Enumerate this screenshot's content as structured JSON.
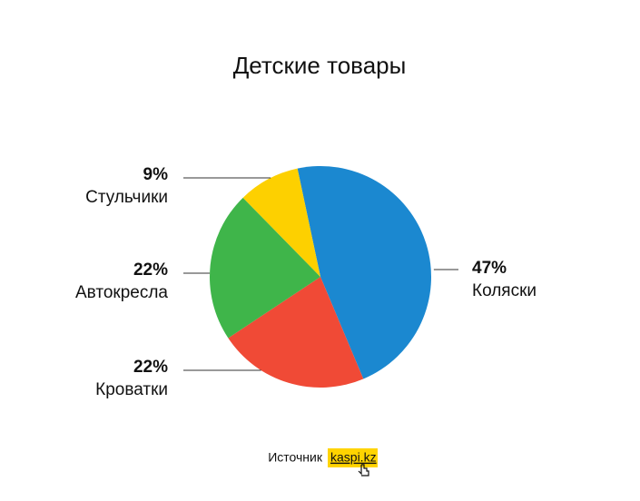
{
  "chart_data": {
    "type": "pie",
    "title": "Детские товары",
    "categories": [
      "Коляски",
      "Кроватки",
      "Автокресла",
      "Стульчики"
    ],
    "values": [
      47,
      22,
      22,
      9
    ],
    "value_labels": [
      "47%",
      "22%",
      "22%",
      "9%"
    ],
    "colors": [
      "#1b88d0",
      "#f04a36",
      "#3fb54a",
      "#fdd000"
    ]
  },
  "source": {
    "label": "Источник",
    "link": "kaspi.kz"
  }
}
